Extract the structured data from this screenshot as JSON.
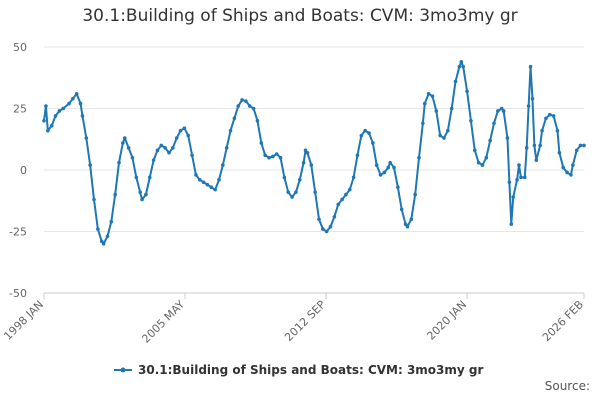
{
  "chart_data": {
    "type": "line",
    "title": "30.1:Building of Ships and Boats: CVM: 3mo3my gr",
    "xlabel": "",
    "ylabel": "",
    "ylim": [
      -50,
      50
    ],
    "yticks": [
      50,
      25,
      0,
      -25,
      -50
    ],
    "xticks": [
      {
        "label": "1998 JAN",
        "year": 1998.0
      },
      {
        "label": "2005 MAY",
        "year": 2005.33
      },
      {
        "label": "2012 SEP",
        "year": 2012.67
      },
      {
        "label": "2020 JAN",
        "year": 2020.0
      },
      {
        "label": "2026 FEB",
        "year": 2026.08
      }
    ],
    "x_range": [
      1998.0,
      2026.08
    ],
    "grid": true,
    "legend_position": "bottom",
    "series": [
      {
        "name": "30.1:Building of Ships and Boats: CVM: 3mo3my gr",
        "color": "#1f77b4",
        "points": [
          [
            1998.0,
            20
          ],
          [
            1998.1,
            26
          ],
          [
            1998.2,
            16
          ],
          [
            1998.4,
            18
          ],
          [
            1998.6,
            22
          ],
          [
            1998.8,
            24
          ],
          [
            1999.0,
            25
          ],
          [
            1999.3,
            27
          ],
          [
            1999.5,
            29
          ],
          [
            1999.7,
            31
          ],
          [
            1999.9,
            27
          ],
          [
            2000.0,
            22
          ],
          [
            2000.2,
            13
          ],
          [
            2000.4,
            2
          ],
          [
            2000.6,
            -12
          ],
          [
            2000.8,
            -24
          ],
          [
            2001.0,
            -29
          ],
          [
            2001.1,
            -30
          ],
          [
            2001.3,
            -27
          ],
          [
            2001.5,
            -21
          ],
          [
            2001.7,
            -10
          ],
          [
            2001.9,
            3
          ],
          [
            2002.1,
            11
          ],
          [
            2002.2,
            13
          ],
          [
            2002.4,
            9
          ],
          [
            2002.6,
            5
          ],
          [
            2002.8,
            -3
          ],
          [
            2003.0,
            -9
          ],
          [
            2003.1,
            -12
          ],
          [
            2003.3,
            -10
          ],
          [
            2003.5,
            -3
          ],
          [
            2003.7,
            4
          ],
          [
            2003.9,
            8
          ],
          [
            2004.1,
            10
          ],
          [
            2004.3,
            9
          ],
          [
            2004.5,
            7
          ],
          [
            2004.7,
            9
          ],
          [
            2004.9,
            13
          ],
          [
            2005.1,
            16
          ],
          [
            2005.3,
            17
          ],
          [
            2005.5,
            14
          ],
          [
            2005.7,
            6
          ],
          [
            2005.9,
            -2
          ],
          [
            2006.1,
            -4
          ],
          [
            2006.3,
            -5
          ],
          [
            2006.5,
            -6
          ],
          [
            2006.7,
            -7
          ],
          [
            2006.9,
            -8
          ],
          [
            2007.1,
            -4
          ],
          [
            2007.3,
            2
          ],
          [
            2007.5,
            9
          ],
          [
            2007.7,
            16
          ],
          [
            2007.9,
            21
          ],
          [
            2008.1,
            26
          ],
          [
            2008.3,
            28.5
          ],
          [
            2008.5,
            28
          ],
          [
            2008.7,
            26
          ],
          [
            2008.9,
            25
          ],
          [
            2009.1,
            20
          ],
          [
            2009.3,
            11
          ],
          [
            2009.5,
            6
          ],
          [
            2009.7,
            5
          ],
          [
            2009.9,
            5.5
          ],
          [
            2010.1,
            6.5
          ],
          [
            2010.3,
            5
          ],
          [
            2010.5,
            -3
          ],
          [
            2010.7,
            -9
          ],
          [
            2010.9,
            -11
          ],
          [
            2011.1,
            -9
          ],
          [
            2011.3,
            -4
          ],
          [
            2011.5,
            3
          ],
          [
            2011.6,
            8
          ],
          [
            2011.7,
            7
          ],
          [
            2011.9,
            2
          ],
          [
            2012.1,
            -9
          ],
          [
            2012.3,
            -20
          ],
          [
            2012.5,
            -24
          ],
          [
            2012.7,
            -25
          ],
          [
            2012.9,
            -23
          ],
          [
            2013.1,
            -19
          ],
          [
            2013.3,
            -14
          ],
          [
            2013.5,
            -12
          ],
          [
            2013.7,
            -10
          ],
          [
            2013.9,
            -8
          ],
          [
            2014.1,
            -3
          ],
          [
            2014.3,
            6
          ],
          [
            2014.5,
            14
          ],
          [
            2014.7,
            16
          ],
          [
            2014.9,
            15
          ],
          [
            2015.1,
            11
          ],
          [
            2015.3,
            2
          ],
          [
            2015.5,
            -2
          ],
          [
            2015.7,
            -1
          ],
          [
            2015.9,
            1
          ],
          [
            2016.0,
            3
          ],
          [
            2016.2,
            1
          ],
          [
            2016.4,
            -7
          ],
          [
            2016.6,
            -16
          ],
          [
            2016.8,
            -22
          ],
          [
            2016.9,
            -23
          ],
          [
            2017.1,
            -20
          ],
          [
            2017.3,
            -10
          ],
          [
            2017.5,
            5
          ],
          [
            2017.7,
            19
          ],
          [
            2017.8,
            27
          ],
          [
            2018.0,
            31
          ],
          [
            2018.2,
            30
          ],
          [
            2018.4,
            24
          ],
          [
            2018.6,
            14
          ],
          [
            2018.8,
            13
          ],
          [
            2019.0,
            16
          ],
          [
            2019.2,
            25
          ],
          [
            2019.4,
            36
          ],
          [
            2019.6,
            42
          ],
          [
            2019.7,
            44
          ],
          [
            2019.8,
            42
          ],
          [
            2020.0,
            32
          ],
          [
            2020.2,
            20
          ],
          [
            2020.4,
            8
          ],
          [
            2020.6,
            3
          ],
          [
            2020.8,
            2
          ],
          [
            2021.0,
            5
          ],
          [
            2021.2,
            12
          ],
          [
            2021.4,
            19
          ],
          [
            2021.6,
            24
          ],
          [
            2021.8,
            25
          ],
          [
            2021.9,
            24
          ],
          [
            2022.1,
            13
          ],
          [
            2022.2,
            -5
          ],
          [
            2022.3,
            -22
          ],
          [
            2022.4,
            -11
          ],
          [
            2022.6,
            -4
          ],
          [
            2022.7,
            2
          ],
          [
            2022.8,
            -3
          ],
          [
            2023.0,
            -3
          ],
          [
            2023.1,
            9
          ],
          [
            2023.2,
            26
          ],
          [
            2023.3,
            42
          ],
          [
            2023.4,
            29
          ],
          [
            2023.5,
            10
          ],
          [
            2023.6,
            4
          ],
          [
            2023.8,
            10
          ],
          [
            2023.9,
            16
          ],
          [
            2024.1,
            21
          ],
          [
            2024.3,
            22.5
          ],
          [
            2024.5,
            22
          ],
          [
            2024.7,
            16
          ],
          [
            2024.8,
            7
          ],
          [
            2025.0,
            1
          ],
          [
            2025.2,
            -1
          ],
          [
            2025.4,
            -2
          ],
          [
            2025.5,
            2
          ],
          [
            2025.7,
            8
          ],
          [
            2025.9,
            10
          ],
          [
            2026.08,
            10
          ]
        ]
      }
    ]
  },
  "source_label": "Source:"
}
